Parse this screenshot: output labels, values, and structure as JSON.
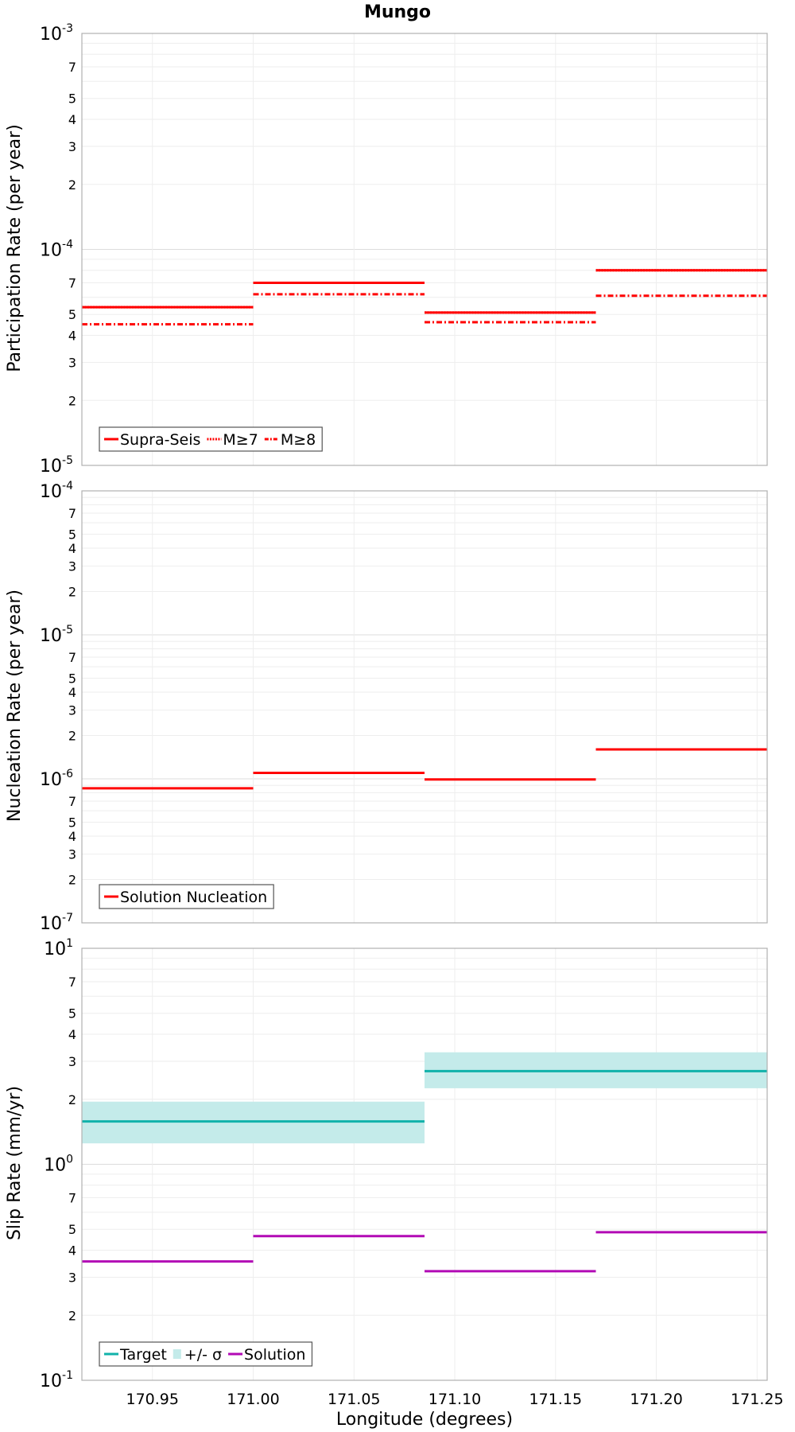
{
  "chart_data": [
    {
      "type": "line",
      "title": "Mungo",
      "ylabel": "Participation Rate (per year)",
      "yscale": "log",
      "ylim": [
        1e-05,
        0.001
      ],
      "xlim": [
        170.915,
        171.255
      ],
      "grid": true,
      "legend_position": "bottom-left",
      "series": [
        {
          "name": "Supra-Seis",
          "color": "#ff0000",
          "style": "solid",
          "segments": [
            [
              170.915,
              171.0,
              5.4e-05
            ],
            [
              171.0,
              171.085,
              7e-05
            ],
            [
              171.085,
              171.17,
              5.1e-05
            ],
            [
              171.17,
              171.255,
              8e-05
            ]
          ]
        },
        {
          "name": "M≥7",
          "color": "#ff0000",
          "style": "dotted",
          "segments": [
            [
              170.915,
              171.0,
              5.4e-05
            ],
            [
              171.0,
              171.085,
              7e-05
            ],
            [
              171.085,
              171.17,
              5.1e-05
            ],
            [
              171.17,
              171.255,
              8e-05
            ]
          ]
        },
        {
          "name": "M≥8",
          "color": "#ff0000",
          "style": "dashdot",
          "segments": [
            [
              170.915,
              171.0,
              4.5e-05
            ],
            [
              171.0,
              171.085,
              6.2e-05
            ],
            [
              171.085,
              171.17,
              4.6e-05
            ],
            [
              171.17,
              171.255,
              6.1e-05
            ]
          ]
        }
      ]
    },
    {
      "type": "line",
      "title": "",
      "ylabel": "Nucleation Rate (per year)",
      "yscale": "log",
      "ylim": [
        1e-07,
        0.0001
      ],
      "xlim": [
        170.915,
        171.255
      ],
      "grid": true,
      "legend_position": "bottom-left",
      "series": [
        {
          "name": "Solution Nucleation",
          "color": "#ff0000",
          "style": "solid",
          "segments": [
            [
              170.915,
              171.0,
              8.6e-07
            ],
            [
              171.0,
              171.085,
              1.1e-06
            ],
            [
              171.085,
              171.17,
              9.9e-07
            ],
            [
              171.17,
              171.255,
              1.6e-06
            ]
          ]
        }
      ]
    },
    {
      "type": "line",
      "title": "",
      "ylabel": "Slip Rate (mm/yr)",
      "xlabel": "Longitude (degrees)",
      "yscale": "log",
      "ylim": [
        0.1,
        10
      ],
      "xlim": [
        170.915,
        171.255
      ],
      "xticks": [
        "170.95",
        "171.00",
        "171.05",
        "171.10",
        "171.15",
        "171.20",
        "171.25"
      ],
      "grid": true,
      "legend_position": "bottom-left",
      "series": [
        {
          "name": "Target",
          "color": "#11b2aa",
          "style": "solid",
          "segments": [
            [
              170.915,
              171.085,
              1.58
            ],
            [
              171.085,
              171.255,
              2.7
            ]
          ]
        },
        {
          "name": "+/- σ",
          "color": "#c4ebea",
          "style": "band",
          "bands": [
            [
              170.915,
              171.085,
              1.25,
              1.95
            ],
            [
              171.085,
              171.255,
              2.25,
              3.3
            ]
          ]
        },
        {
          "name": "Solution",
          "color": "#b20ab5",
          "style": "solid",
          "segments": [
            [
              170.915,
              171.0,
              0.355
            ],
            [
              171.0,
              171.085,
              0.465
            ],
            [
              171.085,
              171.17,
              0.32
            ],
            [
              171.17,
              171.255,
              0.485
            ]
          ]
        }
      ]
    }
  ]
}
